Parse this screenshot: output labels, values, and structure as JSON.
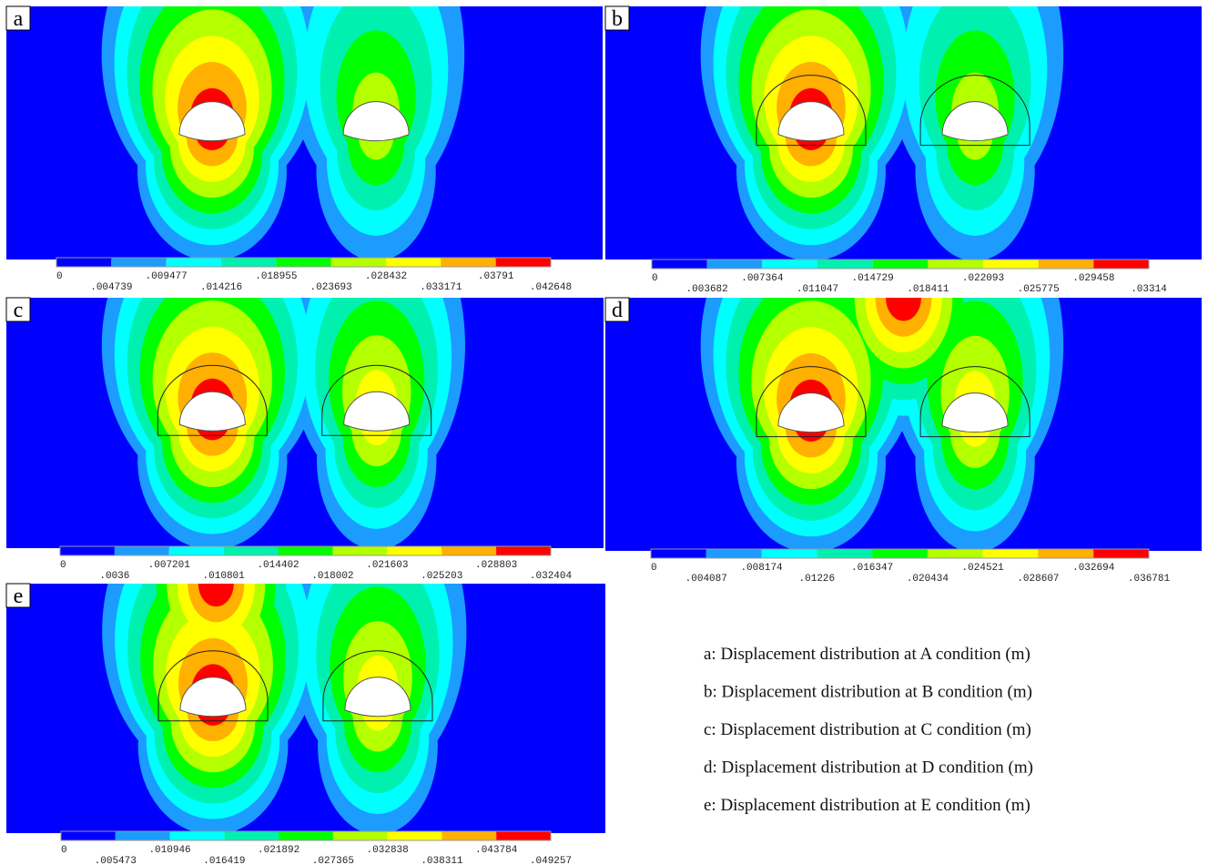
{
  "legend_colors": [
    "#0000ff",
    "#1c9cff",
    "#00ffff",
    "#00f0b0",
    "#00ff00",
    "#b4ff00",
    "#ffff00",
    "#ffb000",
    "#ff0000"
  ],
  "panels": [
    {
      "label": "a",
      "legend": [
        "0",
        ".004739",
        ".009477",
        ".014216",
        ".018955",
        ".023693",
        ".028432",
        ".033171",
        ".03791",
        ".042648"
      ]
    },
    {
      "label": "b",
      "legend": [
        "0",
        ".003682",
        ".007364",
        ".011047",
        ".014729",
        ".018411",
        ".022093",
        ".025775",
        ".029458",
        ".03314"
      ]
    },
    {
      "label": "c",
      "legend": [
        "0",
        ".0036",
        ".007201",
        ".010801",
        ".014402",
        ".018002",
        ".021603",
        ".025203",
        ".028803",
        ".032404"
      ]
    },
    {
      "label": "d",
      "legend": [
        "0",
        ".004087",
        ".008174",
        ".01226",
        ".016347",
        ".020434",
        ".024521",
        ".028607",
        ".032694",
        ".036781"
      ]
    },
    {
      "label": "e",
      "legend": [
        "0",
        ".005473",
        ".010946",
        ".016419",
        ".021892",
        ".027365",
        ".032838",
        ".038311",
        ".043784",
        ".049257"
      ]
    }
  ],
  "captions": [
    "a: Displacement distribution at A condition (m)",
    "b: Displacement distribution at B condition (m)",
    "c: Displacement distribution at C condition (m)",
    "d: Displacement distribution at D condition (m)",
    "e: Displacement distribution at E condition (m)"
  ]
}
